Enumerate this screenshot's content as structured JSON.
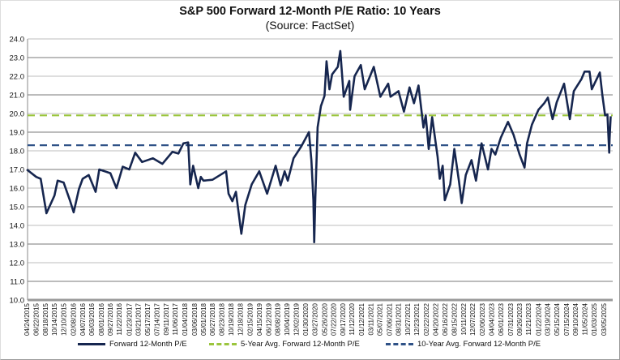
{
  "chart_data": {
    "type": "line",
    "title": "S&P 500 Forward 12-Month P/E Ratio: 10 Years",
    "subtitle": "(Source: FactSet)",
    "ylim": [
      10.0,
      24.0
    ],
    "y_ticks": [
      "10.0",
      "11.0",
      "12.0",
      "13.0",
      "14.0",
      "15.0",
      "16.0",
      "17.0",
      "18.0",
      "19.0",
      "20.0",
      "21.0",
      "22.0",
      "23.0",
      "24.0"
    ],
    "x_ticks": [
      "04/24/2015",
      "06/22/2015",
      "08/18/2015",
      "10/14/2015",
      "12/10/2015",
      "02/08/2016",
      "04/07/2016",
      "06/03/2016",
      "08/01/2016",
      "09/27/2016",
      "11/22/2016",
      "01/23/2017",
      "03/21/2017",
      "05/17/2017",
      "07/14/2017",
      "09/11/2017",
      "11/06/2017",
      "01/04/2018",
      "03/06/2018",
      "05/01/2018",
      "06/27/2018",
      "08/23/2018",
      "10/19/2018",
      "12/18/2018",
      "02/15/2019",
      "04/15/2019",
      "06/12/2019",
      "08/08/2019",
      "10/04/2019",
      "12/02/2019",
      "01/30/2020",
      "03/27/2020",
      "05/26/2020",
      "07/22/2020",
      "09/17/2020",
      "11/12/2020",
      "01/12/2021",
      "03/11/2021",
      "05/07/2021",
      "07/06/2021",
      "08/31/2021",
      "10/27/2021",
      "12/23/2021",
      "02/22/2022",
      "04/20/2022",
      "06/16/2022",
      "08/15/2022",
      "10/11/2022",
      "12/07/2022",
      "02/06/2023",
      "04/04/2023",
      "06/01/2023",
      "07/31/2023",
      "09/26/2023",
      "11/21/2023",
      "01/22/2024",
      "03/19/2024",
      "05/15/2024",
      "07/15/2024",
      "09/10/2024",
      "11/05/2024",
      "01/03/2025",
      "03/05/2025"
    ],
    "grid": true,
    "legend_placement": "bottom",
    "series": [
      {
        "name": "Forward 12-Month P/E",
        "color": "#16264f",
        "style": "solid",
        "points": [
          [
            "04/24/2015",
            17.0
          ],
          [
            "06/22/2015",
            16.6
          ],
          [
            "07/20/2015",
            16.5
          ],
          [
            "08/25/2015",
            14.65
          ],
          [
            "10/14/2015",
            15.6
          ],
          [
            "11/03/2015",
            16.4
          ],
          [
            "12/10/2015",
            16.3
          ],
          [
            "01/20/2016",
            15.3
          ],
          [
            "02/11/2016",
            14.7
          ],
          [
            "03/15/2016",
            15.95
          ],
          [
            "04/07/2016",
            16.5
          ],
          [
            "05/15/2016",
            16.7
          ],
          [
            "06/27/2016",
            15.8
          ],
          [
            "07/20/2016",
            17.0
          ],
          [
            "09/27/2016",
            16.8
          ],
          [
            "11/04/2016",
            16.0
          ],
          [
            "12/13/2016",
            17.15
          ],
          [
            "01/23/2017",
            17.0
          ],
          [
            "03/01/2017",
            17.9
          ],
          [
            "04/13/2017",
            17.4
          ],
          [
            "06/20/2017",
            17.6
          ],
          [
            "08/18/2017",
            17.3
          ],
          [
            "10/20/2017",
            17.95
          ],
          [
            "11/26/2017",
            17.85
          ],
          [
            "12/27/2017",
            18.4
          ],
          [
            "01/26/2018",
            18.45
          ],
          [
            "02/08/2018",
            16.2
          ],
          [
            "02/26/2018",
            17.2
          ],
          [
            "03/30/2018",
            16.0
          ],
          [
            "04/15/2018",
            16.6
          ],
          [
            "05/01/2018",
            16.4
          ],
          [
            "06/27/2018",
            16.45
          ],
          [
            "09/20/2018",
            16.9
          ],
          [
            "10/05/2018",
            15.7
          ],
          [
            "10/29/2018",
            15.3
          ],
          [
            "11/20/2018",
            15.8
          ],
          [
            "12/24/2018",
            13.55
          ],
          [
            "01/18/2019",
            15.1
          ],
          [
            "02/27/2019",
            16.2
          ],
          [
            "04/15/2019",
            16.9
          ],
          [
            "06/03/2019",
            15.7
          ],
          [
            "07/26/2019",
            17.2
          ],
          [
            "08/26/2019",
            16.15
          ],
          [
            "09/20/2019",
            16.9
          ],
          [
            "10/10/2019",
            16.4
          ],
          [
            "11/15/2019",
            17.6
          ],
          [
            "01/03/2020",
            18.25
          ],
          [
            "02/19/2020",
            19.0
          ],
          [
            "03/05/2020",
            17.5
          ],
          [
            "03/18/2020",
            15.35
          ],
          [
            "03/23/2020",
            13.1
          ],
          [
            "03/30/2020",
            15.5
          ],
          [
            "04/13/2020",
            19.26
          ],
          [
            "05/04/2020",
            20.4
          ],
          [
            "05/26/2020",
            20.95
          ],
          [
            "06/08/2020",
            22.8
          ],
          [
            "06/26/2020",
            21.3
          ],
          [
            "07/13/2020",
            22.1
          ],
          [
            "08/17/2020",
            22.5
          ],
          [
            "09/02/2020",
            23.35
          ],
          [
            "09/23/2020",
            20.9
          ],
          [
            "10/28/2020",
            21.75
          ],
          [
            "11/02/2020",
            20.2
          ],
          [
            "11/30/2020",
            22.0
          ],
          [
            "01/08/2021",
            22.6
          ],
          [
            "02/01/2021",
            21.3
          ],
          [
            "03/30/2021",
            22.5
          ],
          [
            "05/10/2021",
            20.9
          ],
          [
            "06/28/2021",
            21.6
          ],
          [
            "07/12/2021",
            20.9
          ],
          [
            "08/31/2021",
            21.2
          ],
          [
            "10/04/2021",
            20.1
          ],
          [
            "11/08/2021",
            21.4
          ],
          [
            "12/06/2021",
            20.55
          ],
          [
            "01/03/2022",
            21.5
          ],
          [
            "02/03/2022",
            19.25
          ],
          [
            "02/17/2022",
            19.9
          ],
          [
            "03/08/2022",
            18.1
          ],
          [
            "03/29/2022",
            19.8
          ],
          [
            "05/02/2022",
            17.7
          ],
          [
            "05/16/2022",
            16.5
          ],
          [
            "06/03/2022",
            17.2
          ],
          [
            "06/16/2022",
            15.35
          ],
          [
            "07/20/2022",
            16.2
          ],
          [
            "08/15/2022",
            18.1
          ],
          [
            "09/12/2022",
            16.4
          ],
          [
            "09/30/2022",
            15.2
          ],
          [
            "10/25/2022",
            16.7
          ],
          [
            "11/30/2022",
            17.5
          ],
          [
            "12/28/2022",
            16.4
          ],
          [
            "02/01/2023",
            18.4
          ],
          [
            "03/13/2023",
            17.0
          ],
          [
            "04/04/2023",
            18.1
          ],
          [
            "04/28/2023",
            17.8
          ],
          [
            "06/01/2023",
            18.7
          ],
          [
            "07/16/2023",
            19.55
          ],
          [
            "08/20/2023",
            18.85
          ],
          [
            "09/26/2023",
            17.8
          ],
          [
            "10/27/2023",
            17.1
          ],
          [
            "11/12/2023",
            18.4
          ],
          [
            "12/12/2023",
            19.4
          ],
          [
            "01/22/2024",
            20.2
          ],
          [
            "02/27/2024",
            20.55
          ],
          [
            "03/21/2024",
            20.85
          ],
          [
            "04/19/2024",
            19.7
          ],
          [
            "05/15/2024",
            20.6
          ],
          [
            "06/30/2024",
            21.6
          ],
          [
            "08/05/2024",
            19.7
          ],
          [
            "08/30/2024",
            21.2
          ],
          [
            "10/17/2024",
            21.85
          ],
          [
            "11/05/2024",
            22.25
          ],
          [
            "12/06/2024",
            22.25
          ],
          [
            "12/20/2024",
            21.3
          ],
          [
            "02/08/2025",
            22.2
          ],
          [
            "02/24/2025",
            21.0
          ],
          [
            "03/13/2025",
            19.9
          ],
          [
            "03/28/2025",
            19.95
          ],
          [
            "04/08/2025",
            17.9
          ],
          [
            "04/10/2025",
            18.6
          ],
          [
            "04/17/2025",
            19.85
          ]
        ]
      },
      {
        "name": "5-Year Avg. Forward 12-Month P/E",
        "color": "#9bc53d",
        "style": "dashed",
        "value": 19.9
      },
      {
        "name": "10-Year Avg. Forward 12-Month P/E",
        "color": "#2f5287",
        "style": "dashed",
        "value": 18.3
      }
    ]
  }
}
